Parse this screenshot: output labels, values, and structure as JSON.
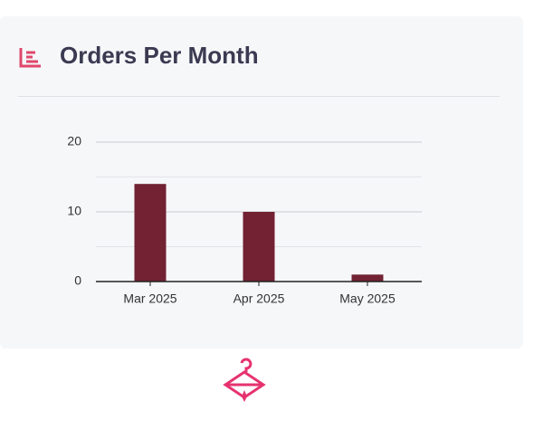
{
  "chart_data": {
    "type": "bar",
    "title": "Orders Per Month",
    "categories": [
      "Mar 2025",
      "Apr 2025",
      "May 2025"
    ],
    "values": [
      14,
      10,
      1
    ],
    "color": "#722233",
    "ylim": [
      0,
      20
    ],
    "yticks": [
      0,
      10,
      20
    ],
    "minor_yticks": [
      5,
      15
    ],
    "grid": true
  }
}
